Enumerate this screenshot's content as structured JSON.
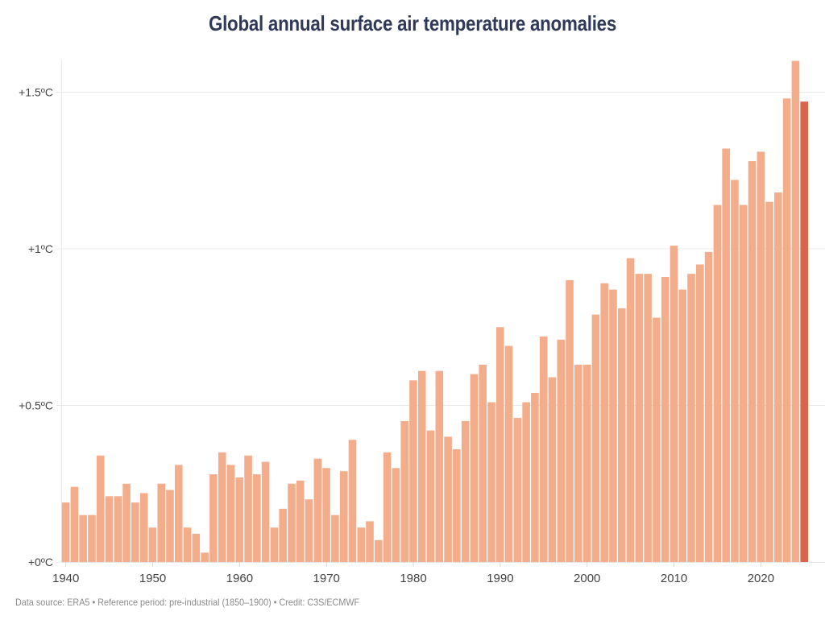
{
  "chart_data": {
    "type": "bar",
    "title": "Global annual surface air temperature anomalies",
    "xlabel": "",
    "ylabel": "",
    "footer": "Data source: ERA5 • Reference period: pre-industrial (1850–1900) • Credit: C3S/ECMWF",
    "ylim": [
      0,
      1.6
    ],
    "yticks": [
      0,
      0.5,
      1,
      1.5
    ],
    "ytick_labels": [
      "+0ºC",
      "+0.5ºC",
      "+1ºC",
      "+1.5ºC"
    ],
    "xticks": [
      1940,
      1950,
      1960,
      1970,
      1980,
      1990,
      2000,
      2010,
      2020
    ],
    "xtick_labels": [
      "1940",
      "1950",
      "1960",
      "1970",
      "1980",
      "1990",
      "2000",
      "2010",
      "2020"
    ],
    "grid": "horizontal",
    "colors": {
      "bar": "#f4ad8b",
      "highlight": "#d9654d",
      "title": "#2f3a58",
      "grid": "#e8e8e8"
    },
    "highlight_year": 2025,
    "categories": [
      1940,
      1941,
      1942,
      1943,
      1944,
      1945,
      1946,
      1947,
      1948,
      1949,
      1950,
      1951,
      1952,
      1953,
      1954,
      1955,
      1956,
      1957,
      1958,
      1959,
      1960,
      1961,
      1962,
      1963,
      1964,
      1965,
      1966,
      1967,
      1968,
      1969,
      1970,
      1971,
      1972,
      1973,
      1974,
      1975,
      1976,
      1977,
      1978,
      1979,
      1980,
      1981,
      1982,
      1983,
      1984,
      1985,
      1986,
      1987,
      1988,
      1989,
      1990,
      1991,
      1992,
      1993,
      1994,
      1995,
      1996,
      1997,
      1998,
      1999,
      2000,
      2001,
      2002,
      2003,
      2004,
      2005,
      2006,
      2007,
      2008,
      2009,
      2010,
      2011,
      2012,
      2013,
      2014,
      2015,
      2016,
      2017,
      2018,
      2019,
      2020,
      2021,
      2022,
      2023,
      2024,
      2025
    ],
    "values": [
      0.19,
      0.24,
      0.15,
      0.15,
      0.34,
      0.21,
      0.21,
      0.25,
      0.19,
      0.22,
      0.11,
      0.25,
      0.23,
      0.31,
      0.11,
      0.09,
      0.03,
      0.28,
      0.35,
      0.31,
      0.27,
      0.34,
      0.28,
      0.32,
      0.11,
      0.17,
      0.25,
      0.26,
      0.2,
      0.33,
      0.3,
      0.15,
      0.29,
      0.39,
      0.11,
      0.13,
      0.07,
      0.35,
      0.3,
      0.45,
      0.58,
      0.61,
      0.42,
      0.61,
      0.4,
      0.36,
      0.45,
      0.6,
      0.63,
      0.51,
      0.75,
      0.69,
      0.46,
      0.51,
      0.54,
      0.72,
      0.59,
      0.71,
      0.9,
      0.63,
      0.63,
      0.79,
      0.89,
      0.87,
      0.81,
      0.97,
      0.92,
      0.92,
      0.78,
      0.91,
      1.01,
      0.87,
      0.92,
      0.95,
      0.99,
      1.14,
      1.32,
      1.22,
      1.14,
      1.28,
      1.31,
      1.15,
      1.18,
      1.48,
      1.6,
      1.47
    ]
  }
}
